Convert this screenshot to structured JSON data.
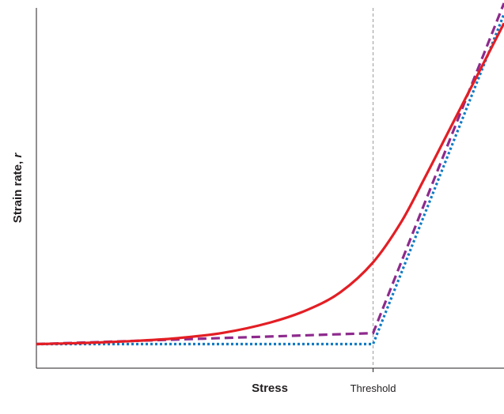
{
  "chart_data": {
    "type": "line",
    "title": "",
    "xlabel": "Stress",
    "ylabel_text": "Strain rate, ",
    "ylabel_symbol": "r",
    "xlim": [
      0,
      1
    ],
    "ylim": [
      0,
      1
    ],
    "x_ticks": [
      {
        "x": 0.72,
        "label": "Threshold"
      }
    ],
    "threshold_line": {
      "x": 0.72,
      "style": "dashed",
      "color": "#9d9d9d"
    },
    "grid": false,
    "legend": "none",
    "series": [
      {
        "color": "#e31e24",
        "style": "solid",
        "points": [
          [
            0.0,
            0.066
          ],
          [
            0.1,
            0.069
          ],
          [
            0.2,
            0.074
          ],
          [
            0.3,
            0.082
          ],
          [
            0.4,
            0.097
          ],
          [
            0.5,
            0.125
          ],
          [
            0.58,
            0.16
          ],
          [
            0.65,
            0.208
          ],
          [
            0.72,
            0.29
          ],
          [
            0.78,
            0.4
          ],
          [
            0.83,
            0.52
          ],
          [
            0.88,
            0.645
          ],
          [
            0.94,
            0.795
          ],
          [
            1.0,
            0.945
          ]
        ]
      },
      {
        "color": "#8e2a8d",
        "style": "dashed",
        "points": [
          [
            0.0,
            0.066
          ],
          [
            0.72,
            0.096
          ],
          [
            1.0,
            1.0
          ]
        ]
      },
      {
        "color": "#0f7ac4",
        "style": "dotted",
        "points": [
          [
            0.0,
            0.066
          ],
          [
            0.72,
            0.066
          ],
          [
            1.0,
            0.97
          ]
        ]
      }
    ]
  }
}
